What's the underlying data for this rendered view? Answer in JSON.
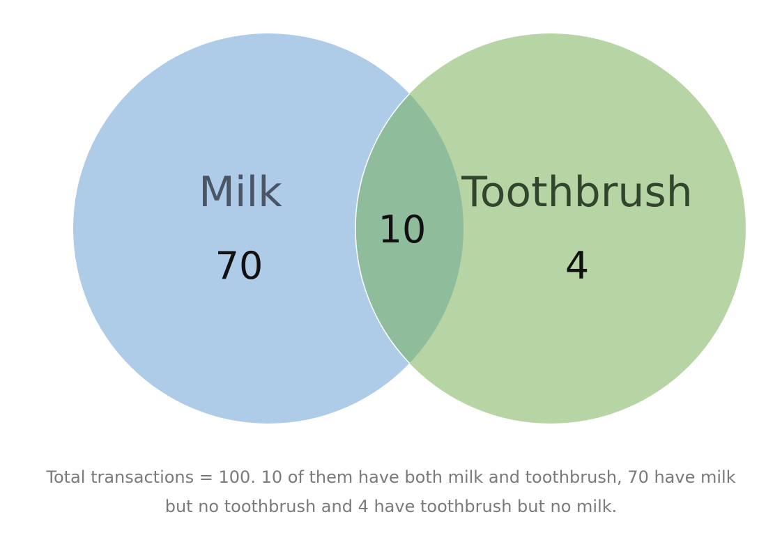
{
  "colors": {
    "set_a": "#aecbe8",
    "set_b": "#b7d5a4",
    "overlap": "#8fbc9a",
    "set_a_label": "#4a5566",
    "set_b_label": "#33452c",
    "caption": "#7a7a7a"
  },
  "sets": [
    {
      "name": "Milk",
      "only_count": "70"
    },
    {
      "name": "Toothbrush",
      "only_count": "4"
    }
  ],
  "intersection_count": "10",
  "caption": {
    "line1": "Total transactions = 100. 10 of them have both milk and toothbrush, 70 have milk",
    "line2": "but no toothbrush and 4 have toothbrush but no milk."
  }
}
